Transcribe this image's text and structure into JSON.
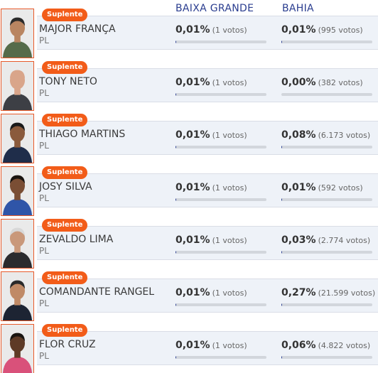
{
  "headers": {
    "city": "BAIXA GRANDE",
    "state": "BAHIA"
  },
  "badge_label": "Suplente",
  "candidates": [
    {
      "name": "MAJOR FRANÇA",
      "party": "PL",
      "city_pct": "0,01%",
      "city_votes": "(1 votos)",
      "state_pct": "0,01%",
      "state_votes": "(995 votos)",
      "city_fill": 0.0001,
      "state_fill": 0.0001,
      "skin": "#b98561",
      "shirt": "#556b4a",
      "hair": "#2b2b2b"
    },
    {
      "name": "TONY NETO",
      "party": "PL",
      "city_pct": "0,01%",
      "city_votes": "(1 votos)",
      "state_pct": "0,00%",
      "state_votes": "(382 votos)",
      "city_fill": 0.0001,
      "state_fill": 0.0,
      "skin": "#d9a58a",
      "shirt": "#3d3f45",
      "hair": "#d9a58a"
    },
    {
      "name": "THIAGO MARTINS",
      "party": "PL",
      "city_pct": "0,01%",
      "city_votes": "(1 votos)",
      "state_pct": "0,08%",
      "state_votes": "(6.173 votos)",
      "city_fill": 0.0001,
      "state_fill": 0.0008,
      "skin": "#8a5a3c",
      "shirt": "#1f2d4a",
      "hair": "#1a1a1a"
    },
    {
      "name": "JOSY SILVA",
      "party": "PL",
      "city_pct": "0,01%",
      "city_votes": "(1 votos)",
      "state_pct": "0,01%",
      "state_votes": "(592 votos)",
      "city_fill": 0.0001,
      "state_fill": 0.0001,
      "skin": "#7a4e34",
      "shirt": "#2f55a8",
      "hair": "#1a1410"
    },
    {
      "name": "ZEVALDO LIMA",
      "party": "PL",
      "city_pct": "0,01%",
      "city_votes": "(1 votos)",
      "state_pct": "0,03%",
      "state_votes": "(2.774 votos)",
      "city_fill": 0.0001,
      "state_fill": 0.0003,
      "skin": "#c9987a",
      "shirt": "#2b2b2e",
      "hair": "#d8d8d8"
    },
    {
      "name": "COMANDANTE RANGEL",
      "party": "PL",
      "city_pct": "0,01%",
      "city_votes": "(1 votos)",
      "state_pct": "0,27%",
      "state_votes": "(21.599 votos)",
      "city_fill": 0.0001,
      "state_fill": 0.0027,
      "skin": "#c08a66",
      "shirt": "#1d2433",
      "hair": "#2a2a2a"
    },
    {
      "name": "FLOR CRUZ",
      "party": "PL",
      "city_pct": "0,01%",
      "city_votes": "(1 votos)",
      "state_pct": "0,06%",
      "state_votes": "(4.822 votos)",
      "city_fill": 0.0001,
      "state_fill": 0.0006,
      "skin": "#5e3a26",
      "shirt": "#d9517a",
      "hair": "#1a1410"
    }
  ]
}
